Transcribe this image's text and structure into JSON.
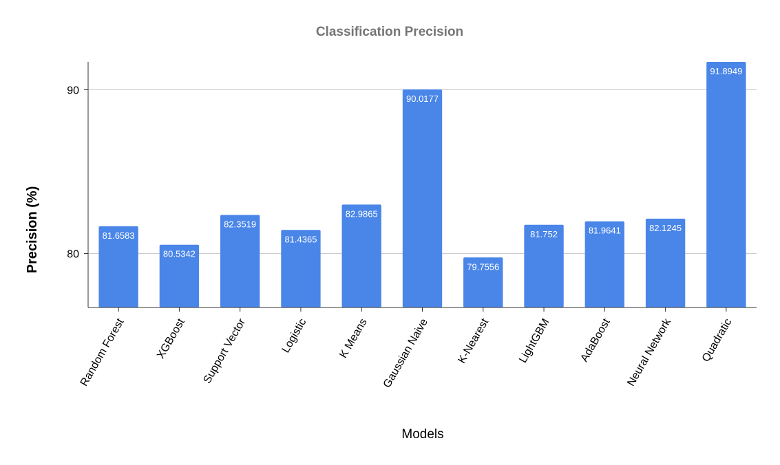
{
  "chart_data": {
    "type": "bar",
    "title": "Classification Precision",
    "xlabel": "Models",
    "ylabel": "Precision (%)",
    "categories": [
      "Random Forest",
      "XGBoost",
      "Support Vector",
      "Logistic",
      "K Means",
      "Gaussian Naive",
      "K-Nearest",
      "LightGBM",
      "AdaBoost",
      "Neural Network",
      "Quadratic"
    ],
    "values": [
      81.6583,
      80.5342,
      82.3519,
      81.4365,
      82.9865,
      90.0177,
      79.7556,
      81.752,
      81.9641,
      82.1245,
      91.8949
    ],
    "data_labels": [
      "81.6583",
      "80.5342",
      "82.3519",
      "81.4365",
      "82.9865",
      "90.0177",
      "79.7556",
      "81.752",
      "81.9641",
      "82.1245",
      "91.8949"
    ],
    "yticks": [
      80,
      90
    ],
    "ytick_labels": [
      "80",
      "90"
    ],
    "ylim": [
      76.7,
      91.7
    ],
    "grid": true,
    "legend": "none",
    "bar_color": "#4a86e8"
  }
}
